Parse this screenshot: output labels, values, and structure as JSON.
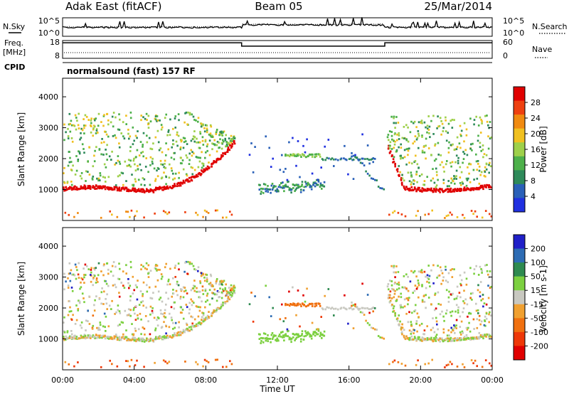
{
  "header": {
    "station": "Adak East (fitACF)",
    "beam": "Beam 05",
    "date": "25/Mar/2014"
  },
  "summary_panels": {
    "nsky_label": "N.Sky",
    "nsky_ticks": [
      "10^5",
      "10^0"
    ],
    "nsearch_label": "N.Search",
    "freq_label": "Freq.",
    "freq_unit": "[MHz]",
    "freq_ticks": [
      "18",
      "8"
    ],
    "nave_label": "Nave",
    "nave_ticks": [
      "60",
      "0"
    ],
    "cpid_label": "CPID",
    "cpid_text": "normalsound (fast) 157 RF"
  },
  "colors": {
    "power_scale": [
      "#2030e0",
      "#2a60b8",
      "#2e8a5a",
      "#4db04a",
      "#9ed04a",
      "#f0c020",
      "#f08a10",
      "#ee4010",
      "#e00000"
    ],
    "velocity_scale": [
      "#2020c8",
      "#2d6cb4",
      "#2e8a50",
      "#7cd040",
      "#c8c8c0",
      "#f0a030",
      "#f07010",
      "#ee3808",
      "#e00000"
    ],
    "velocity_gray": "#c0c0b8"
  },
  "chart_data": [
    {
      "type": "heatmap",
      "panel": "power",
      "x_ticks": [
        "00:00",
        "04:00",
        "08:00",
        "12:00",
        "16:00",
        "20:00",
        "00:00"
      ],
      "xlim_hours": [
        0,
        24
      ],
      "ylim": [
        0,
        4600
      ],
      "y_ticks": [
        1000,
        2000,
        3000,
        4000
      ],
      "ylabel": "Slant Range [km]",
      "colorbar_label": "Power [dB]",
      "colorbar_ticks": [
        4,
        8,
        12,
        16,
        20,
        24,
        28
      ],
      "colorbar_range": [
        0,
        32
      ]
    },
    {
      "type": "heatmap",
      "panel": "velocity",
      "x_ticks": [
        "00:00",
        "04:00",
        "08:00",
        "12:00",
        "16:00",
        "20:00",
        "00:00"
      ],
      "xlim_hours": [
        0,
        24
      ],
      "ylim": [
        0,
        4600
      ],
      "y_ticks": [
        1000,
        2000,
        3000,
        4000
      ],
      "ylabel": "Slant Range [km]",
      "xlabel": "Time UT",
      "colorbar_label": "Velocity [m s-1]",
      "colorbar_ticks": [
        "200",
        "100",
        "50",
        "15",
        "-15",
        "-50",
        "-100",
        "-200"
      ]
    },
    {
      "type": "line",
      "panel": "frequency",
      "x_hours": [
        0,
        10,
        10,
        18,
        18,
        24
      ],
      "values_mhz": [
        17.5,
        17.5,
        15.2,
        15.2,
        17.5,
        17.5
      ]
    }
  ]
}
